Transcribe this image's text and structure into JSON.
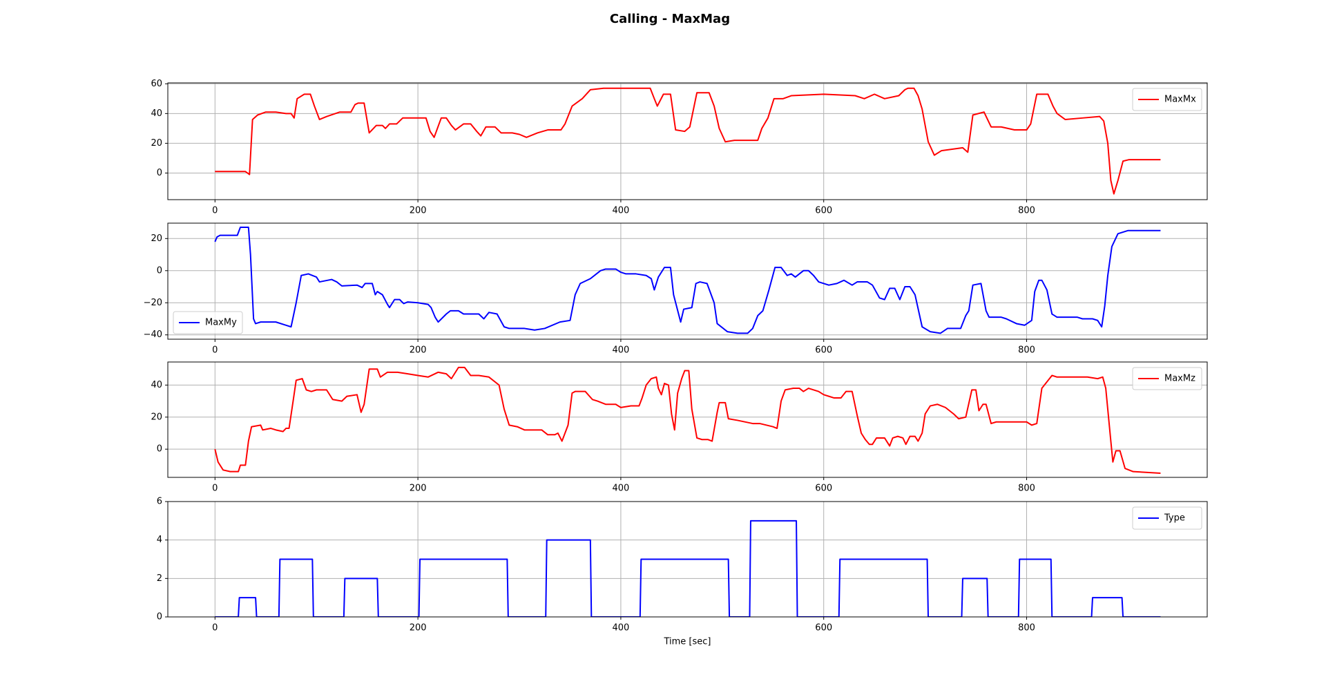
{
  "title": "Calling - MaxMag",
  "chart_data": [
    {
      "type": "line",
      "x": [
        0,
        10,
        20,
        30,
        32,
        34,
        37,
        42,
        50,
        60,
        70,
        75,
        78,
        81,
        88,
        94,
        98,
        103,
        110,
        123,
        134,
        138,
        141,
        147,
        152,
        159,
        165,
        168,
        172,
        179,
        185,
        208,
        212,
        216,
        223,
        228,
        233,
        237,
        245,
        252,
        258,
        262,
        267,
        276,
        282,
        293,
        300,
        307,
        318,
        328,
        341,
        345,
        352,
        362,
        370,
        383,
        429,
        433,
        436,
        442,
        449,
        454,
        463,
        468,
        475,
        487,
        492,
        497,
        503,
        512,
        535,
        539,
        545,
        551,
        560,
        568,
        600,
        631,
        640,
        650,
        660,
        674,
        680,
        683,
        689,
        693,
        697,
        703,
        709,
        716,
        737,
        742,
        747,
        758,
        765,
        775,
        788,
        800,
        804,
        810,
        821,
        826,
        830,
        838,
        855,
        872,
        876,
        880,
        883,
        886,
        890,
        895,
        901,
        932
      ],
      "series": [
        {
          "name": "MaxMx",
          "color": "#ff0000",
          "values": [
            1,
            1,
            1,
            1,
            0,
            -1,
            36,
            39,
            41,
            41,
            40,
            40,
            37,
            50,
            53,
            53,
            45,
            36,
            38,
            41,
            41,
            46,
            47,
            47,
            27,
            32,
            32,
            30,
            33,
            33,
            37,
            37,
            28,
            24,
            37,
            37,
            32,
            29,
            33,
            33,
            28,
            25,
            31,
            31,
            27,
            27,
            26,
            24,
            27,
            29,
            29,
            33,
            45,
            50,
            56,
            57,
            57,
            50,
            45,
            53,
            53,
            29,
            28,
            31,
            54,
            54,
            45,
            30,
            21,
            22,
            22,
            30,
            37,
            50,
            50,
            52,
            53,
            52,
            50,
            53,
            50,
            52,
            56,
            57,
            57,
            52,
            43,
            21,
            12,
            15,
            17,
            14,
            39,
            41,
            31,
            31,
            29,
            29,
            33,
            53,
            53,
            45,
            40,
            36,
            37,
            38,
            35,
            20,
            -5,
            -14,
            -5,
            8,
            9,
            9
          ]
        }
      ],
      "xlim": [
        -46.5,
        978
      ],
      "ylim": [
        -17.9,
        60.6
      ],
      "xticks": [
        0,
        200,
        400,
        600,
        800
      ],
      "yticks": [
        0,
        20,
        40,
        60
      ],
      "grid": true,
      "legend": "upper right"
    },
    {
      "type": "line",
      "x": [
        0,
        2,
        5,
        22,
        25,
        33,
        35,
        38,
        40,
        45,
        60,
        70,
        75,
        80,
        85,
        92,
        100,
        103,
        115,
        120,
        125,
        140,
        145,
        148,
        155,
        158,
        160,
        165,
        170,
        172,
        177,
        182,
        186,
        190,
        200,
        210,
        213,
        217,
        220,
        228,
        232,
        240,
        245,
        260,
        265,
        270,
        278,
        285,
        290,
        305,
        315,
        325,
        340,
        350,
        355,
        360,
        370,
        376,
        380,
        385,
        395,
        400,
        405,
        415,
        425,
        430,
        433,
        437,
        443,
        449,
        452,
        459,
        462,
        470,
        474,
        478,
        485,
        492,
        495,
        505,
        515,
        525,
        530,
        535,
        540,
        546,
        552,
        558,
        564,
        568,
        572,
        580,
        585,
        590,
        595,
        605,
        613,
        620,
        628,
        633,
        643,
        648,
        655,
        660,
        665,
        670,
        675,
        680,
        685,
        690,
        697,
        705,
        715,
        722,
        735,
        740,
        743,
        747,
        755,
        760,
        763,
        775,
        780,
        790,
        798,
        805,
        808,
        812,
        815,
        820,
        825,
        830,
        840,
        850,
        855,
        865,
        870,
        874,
        877,
        880,
        884,
        890,
        900,
        932
      ],
      "series": [
        {
          "name": "MaxMy",
          "color": "#0000ff",
          "values": [
            18,
            21,
            22,
            22,
            27,
            27,
            10,
            -30,
            -33,
            -32,
            -32,
            -34,
            -35,
            -20,
            -3,
            -2,
            -4,
            -7,
            -5.5,
            -7,
            -9.5,
            -9,
            -10.5,
            -8,
            -8,
            -15,
            -13,
            -15,
            -21,
            -23,
            -18,
            -18,
            -20.5,
            -19.5,
            -20,
            -21,
            -23,
            -29,
            -32,
            -27,
            -25,
            -25,
            -27,
            -27,
            -30,
            -26,
            -27,
            -35,
            -36,
            -36,
            -37,
            -36,
            -32,
            -31,
            -15,
            -8,
            -5,
            -2,
            0,
            1,
            1,
            -1,
            -2,
            -2,
            -3,
            -5,
            -12,
            -4,
            2,
            2,
            -15,
            -32,
            -24,
            -23,
            -8,
            -7,
            -8,
            -20,
            -33,
            -38,
            -39,
            -39,
            -36,
            -28,
            -25,
            -12,
            2,
            2,
            -3,
            -2,
            -4,
            0,
            0,
            -3,
            -7,
            -9,
            -8,
            -6,
            -9,
            -7,
            -7,
            -9,
            -17,
            -18,
            -11,
            -11,
            -18,
            -10,
            -10,
            -15,
            -35,
            -38,
            -39,
            -36,
            -36,
            -28,
            -25,
            -9,
            -8,
            -25,
            -29,
            -29,
            -30,
            -33,
            -34,
            -31,
            -13,
            -6,
            -6,
            -12,
            -27,
            -29,
            -29,
            -29,
            -30,
            -30,
            -31,
            -35,
            -22,
            -3,
            15,
            23,
            25,
            25
          ]
        }
      ],
      "xlim": [
        -46.5,
        978
      ],
      "ylim": [
        -42.7,
        29.6
      ],
      "xticks": [
        0,
        200,
        400,
        600,
        800
      ],
      "yticks": [
        {
          "value": -40,
          "label": "−40"
        },
        {
          "value": -20,
          "label": "−20"
        },
        0,
        20
      ],
      "grid": true,
      "legend": "lower left"
    },
    {
      "type": "line",
      "x": [
        0,
        3,
        8,
        15,
        23,
        25,
        30,
        33,
        36,
        45,
        47,
        55,
        60,
        67,
        70,
        73,
        77,
        80,
        86,
        90,
        95,
        100,
        110,
        116,
        125,
        130,
        140,
        144,
        147,
        152,
        160,
        163,
        170,
        180,
        190,
        200,
        210,
        220,
        228,
        233,
        240,
        246,
        252,
        260,
        270,
        280,
        285,
        290,
        298,
        305,
        318,
        322,
        328,
        335,
        338,
        342,
        348,
        352,
        355,
        365,
        372,
        377,
        385,
        395,
        400,
        410,
        418,
        421,
        425,
        430,
        435,
        437,
        440,
        443,
        447,
        450,
        453,
        456,
        460,
        463,
        467,
        470,
        475,
        480,
        486,
        490,
        495,
        497,
        503,
        506,
        515,
        530,
        537,
        550,
        554,
        558,
        562,
        570,
        576,
        580,
        585,
        595,
        600,
        605,
        610,
        617,
        622,
        628,
        633,
        637,
        641,
        645,
        648,
        652,
        660,
        665,
        668,
        673,
        678,
        681,
        685,
        690,
        693,
        697,
        700,
        705,
        712,
        720,
        728,
        733,
        740,
        746,
        750,
        753,
        757,
        760,
        765,
        770,
        780,
        790,
        800,
        805,
        810,
        815,
        820,
        825,
        830,
        840,
        850,
        860,
        870,
        875,
        878,
        883,
        885,
        888,
        892,
        897,
        905,
        932
      ],
      "series": [
        {
          "name": "MaxMz",
          "color": "#ff0000",
          "values": [
            0,
            -8,
            -13,
            -14,
            -14,
            -10,
            -10,
            5,
            14,
            15,
            12,
            13,
            12,
            11,
            13,
            13,
            30,
            43,
            44,
            37,
            36,
            37,
            37,
            31,
            30,
            33,
            34,
            23,
            28,
            50,
            50,
            45,
            48,
            48,
            47,
            46,
            45,
            48,
            47,
            44,
            51,
            51,
            46,
            46,
            45,
            40,
            25,
            15,
            14,
            12,
            12,
            12,
            9,
            9,
            10,
            5,
            15,
            35,
            36,
            36,
            31,
            30,
            28,
            28,
            26,
            27,
            27,
            32,
            40,
            44,
            45,
            38,
            34,
            41,
            40,
            22,
            12,
            35,
            44,
            49,
            49,
            25,
            7,
            6,
            6,
            5,
            23,
            29,
            29,
            19,
            18,
            16,
            16,
            14,
            13,
            30,
            37,
            38,
            38,
            36,
            38,
            36,
            34,
            33,
            32,
            32,
            36,
            36,
            21,
            10,
            6,
            3,
            3,
            7,
            7,
            2,
            7,
            8,
            7,
            3,
            8,
            8,
            5,
            10,
            22,
            27,
            28,
            26,
            22,
            19,
            20,
            37,
            37,
            24,
            28,
            28,
            16,
            17,
            17,
            17,
            17,
            15,
            16,
            38,
            42,
            46,
            45,
            45,
            45,
            45,
            44,
            45,
            38,
            5,
            -8,
            -1,
            -1,
            -12,
            -14,
            -15
          ]
        }
      ],
      "xlim": [
        -46.5,
        978
      ],
      "ylim": [
        -17.6,
        54.4
      ],
      "xticks": [
        0,
        200,
        400,
        600,
        800
      ],
      "yticks": [
        0,
        20,
        40
      ],
      "grid": true,
      "legend": "upper right"
    },
    {
      "type": "line",
      "x": [
        0,
        23,
        24,
        40,
        41,
        63,
        64,
        96,
        97,
        127,
        128,
        160,
        161,
        201,
        202,
        288,
        289,
        326,
        327,
        370,
        371,
        419,
        420,
        506,
        507,
        527,
        528,
        573,
        574,
        615,
        616,
        702,
        703,
        736,
        737,
        761,
        762,
        792,
        793,
        824,
        825,
        864,
        865,
        894,
        895,
        932
      ],
      "series": [
        {
          "name": "Type",
          "color": "#0000ff",
          "values": [
            0,
            0,
            1,
            1,
            0,
            0,
            3,
            3,
            0,
            0,
            2,
            2,
            0,
            0,
            3,
            3,
            0,
            0,
            4,
            4,
            0,
            0,
            3,
            3,
            0,
            0,
            5,
            5,
            0,
            0,
            3,
            3,
            0,
            0,
            2,
            2,
            0,
            0,
            3,
            3,
            0,
            0,
            1,
            1,
            0,
            0
          ]
        }
      ],
      "xlim": [
        -46.5,
        978
      ],
      "ylim": [
        0,
        6
      ],
      "xticks": [
        0,
        200,
        400,
        600,
        800
      ],
      "yticks": [
        0,
        2,
        4,
        6
      ],
      "grid": true,
      "legend": "upper right",
      "xlabel": "Time [sec]"
    }
  ]
}
